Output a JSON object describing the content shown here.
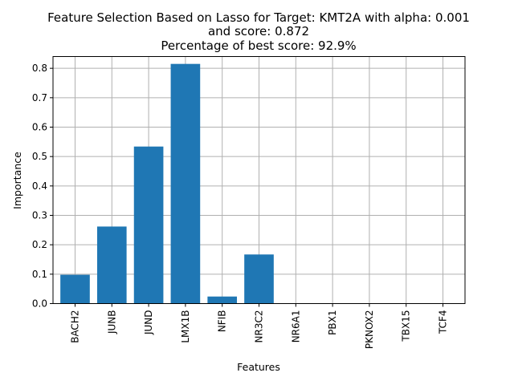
{
  "chart_data": {
    "type": "bar",
    "title_lines": [
      "Feature Selection Based on Lasso for Target: KMT2A with alpha: 0.001",
      "and score: 0.872",
      "Percentage of best score: 92.9%"
    ],
    "xlabel": "Features",
    "ylabel": "Importance",
    "categories": [
      "BACH2",
      "JUNB",
      "JUND",
      "LMX1B",
      "NFIB",
      "NR3C2",
      "NR6A1",
      "PBX1",
      "PKNOX2",
      "TBX15",
      "TCF4"
    ],
    "values": [
      0.098,
      0.262,
      0.534,
      0.815,
      0.024,
      0.167,
      0.0,
      0.0,
      0.0,
      0.0,
      0.0
    ],
    "ylim": [
      0,
      0.84
    ],
    "yticks": [
      "0.0",
      "0.1",
      "0.2",
      "0.3",
      "0.4",
      "0.5",
      "0.6",
      "0.7",
      "0.8"
    ],
    "grid": true,
    "bar_color": "#1f77b4"
  }
}
